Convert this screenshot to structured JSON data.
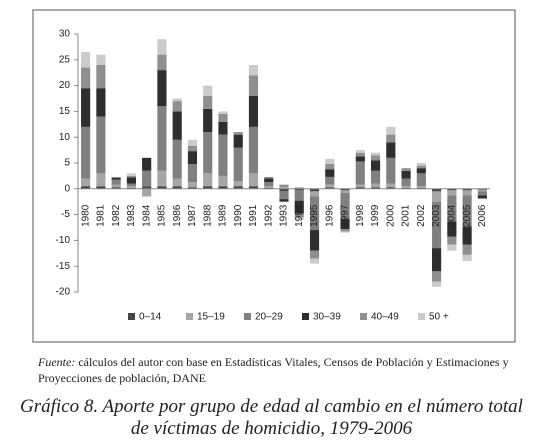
{
  "chart_data": {
    "type": "stacked_bar",
    "categories": [
      "1980",
      "1981",
      "1982",
      "1983",
      "1984",
      "1985",
      "1986",
      "1987",
      "1988",
      "1989",
      "1990",
      "1991",
      "1992",
      "1993",
      "1994",
      "1995",
      "1996",
      "1997",
      "1998",
      "1999",
      "2000",
      "2001",
      "2002",
      "2003",
      "2004",
      "2005",
      "2006"
    ],
    "series": [
      {
        "name": "0–14",
        "color": "#454545",
        "values": [
          0.5,
          0.5,
          0.3,
          0.2,
          0.5,
          0.5,
          0.5,
          0.3,
          0.5,
          0.5,
          0.5,
          0.5,
          0.2,
          -0.5,
          -0.3,
          -0.5,
          0.3,
          -0.3,
          0.3,
          0.3,
          0.3,
          0.2,
          0.2,
          -0.5,
          -0.3,
          -0.3,
          -0.2
        ]
      },
      {
        "name": "15–19",
        "color": "#a6a6a6",
        "values": [
          1.5,
          2.5,
          0.5,
          0.3,
          -1.5,
          3,
          1.5,
          1,
          2.5,
          2,
          1,
          2.5,
          0.3,
          0.3,
          0.3,
          -1,
          0.5,
          -0.5,
          0.5,
          0.7,
          0.7,
          0.3,
          0.3,
          -2,
          -1,
          -1,
          -0.3
        ]
      },
      {
        "name": "20–29",
        "color": "#808080",
        "values": [
          10,
          11,
          1,
          0.5,
          3,
          12.5,
          7.5,
          3.5,
          8,
          8,
          6.5,
          9,
          0.8,
          -1.5,
          -2,
          -6.5,
          1.5,
          -5,
          4.5,
          2.5,
          5,
          1.5,
          2.5,
          -9,
          -5,
          -6,
          -0.8
        ]
      },
      {
        "name": "30–39",
        "color": "#2e2e2e",
        "values": [
          7.5,
          5.5,
          0.3,
          1.2,
          2.5,
          7,
          5.5,
          2.5,
          4.5,
          2.5,
          2.5,
          6,
          0.7,
          -0.5,
          -2.5,
          -4,
          1.5,
          -2,
          1,
          2,
          3,
          1.5,
          1,
          -4.5,
          -3,
          -3.5,
          -0.5
        ]
      },
      {
        "name": "40–49",
        "color": "#8f8f8f",
        "values": [
          4,
          4.5,
          0.2,
          0.3,
          0,
          3,
          2,
          1,
          2.5,
          1.5,
          0.5,
          4,
          0.3,
          0.5,
          -0.7,
          -1.5,
          1,
          -0.5,
          0.7,
          1,
          1.5,
          0.5,
          0.5,
          -2,
          -1.5,
          -2,
          -0.2
        ]
      },
      {
        "name": "50 +",
        "color": "#cbcbcb",
        "values": [
          3,
          2,
          0,
          0.5,
          0,
          3,
          0.5,
          1.2,
          2,
          0.5,
          0,
          2,
          0,
          0,
          -0.5,
          -1,
          1,
          -0.2,
          0.5,
          0.5,
          1.5,
          0,
          0.5,
          -1,
          -1.2,
          -1.2,
          0
        ]
      }
    ],
    "ylim": [
      -20,
      30
    ],
    "yticks": [
      -20,
      -15,
      -10,
      -5,
      0,
      5,
      10,
      15,
      20,
      25,
      30
    ],
    "source_label": "Fuente:",
    "source": "cálculos del autor con base en Estadísticas Vitales, Censos de Población y Estimaciones y Proyecciones de población, DANE",
    "caption": "Gráfico 8. Aporte por grupo de edad al cambio en el número total de víctimas de homicidio, 1979-2006"
  }
}
